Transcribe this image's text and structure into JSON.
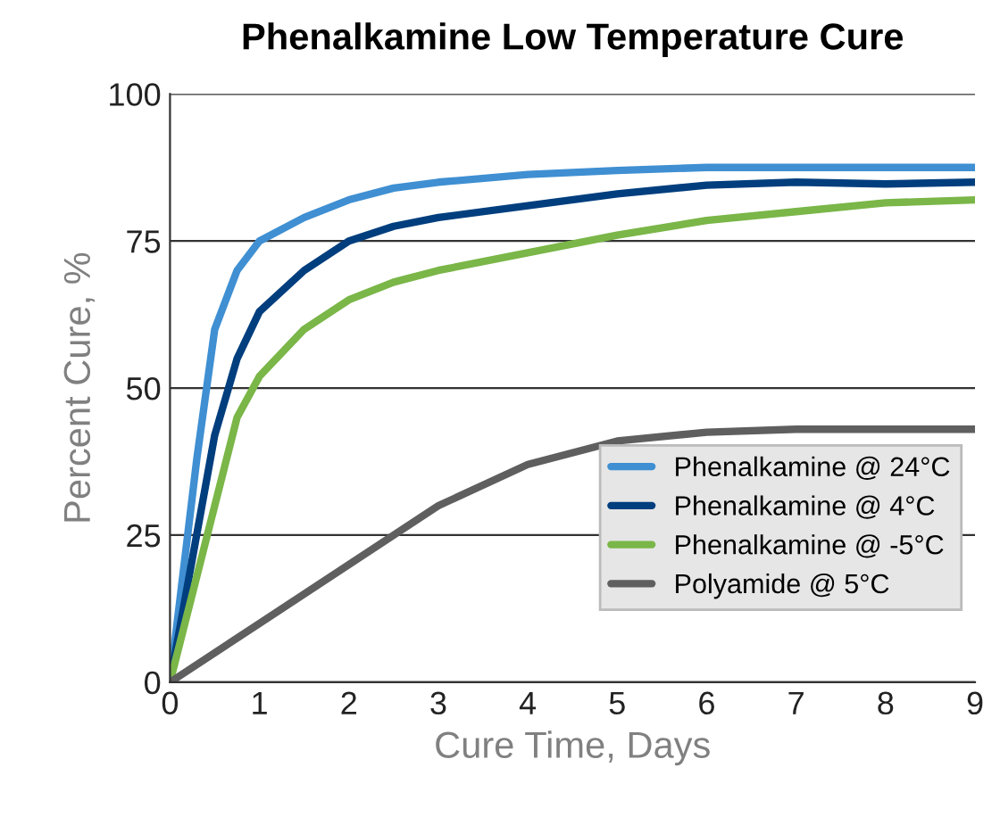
{
  "chart_data": {
    "type": "line",
    "title": "Phenalkamine Low Temperature Cure",
    "xlabel": "Cure Time, Days",
    "ylabel": "Percent Cure, %",
    "xlim": [
      0,
      9
    ],
    "xticks": [
      0,
      1,
      2,
      3,
      4,
      5,
      6,
      7,
      8,
      9
    ],
    "ylim": [
      0,
      100
    ],
    "yticks": [
      0,
      25,
      50,
      75,
      100
    ],
    "grid": "y",
    "legend": "bottom right",
    "marker": "none",
    "line_style": "solid",
    "series": [
      {
        "name": "Phenalkamine @ 24°C",
        "color": "#3f8fd2",
        "x": [
          0,
          0.3,
          0.5,
          0.75,
          1,
          1.5,
          2,
          2.5,
          3,
          4,
          5,
          6,
          7,
          8,
          9
        ],
        "values": [
          0,
          38,
          60,
          70,
          75,
          79,
          82,
          84,
          85,
          86.3,
          87,
          87.5,
          87.5,
          87.5,
          87.5
        ]
      },
      {
        "name": "Phenalkamine @ 4°C",
        "color": "#003e7e",
        "x": [
          0,
          0.5,
          0.75,
          1,
          1.5,
          2,
          2.5,
          3,
          4,
          5,
          6,
          7,
          8,
          9
        ],
        "values": [
          0,
          42,
          55,
          63,
          70,
          75,
          77.5,
          79,
          81,
          83,
          84.5,
          85,
          84.7,
          85
        ]
      },
      {
        "name": "Phenalkamine @ -5°C",
        "color": "#7ab648",
        "x": [
          0,
          0.5,
          0.75,
          1,
          1.5,
          2,
          2.5,
          3,
          4,
          5,
          6,
          7,
          8,
          9
        ],
        "values": [
          0,
          30,
          45,
          52,
          60,
          65,
          68,
          70,
          73,
          76,
          78.5,
          80,
          81.5,
          82
        ]
      },
      {
        "name": "Polyamide @ 5°C",
        "color": "#5f5f5f",
        "x": [
          0,
          1,
          2,
          3,
          4,
          5,
          6,
          7,
          8,
          9
        ],
        "values": [
          0,
          10,
          20,
          30,
          37,
          41,
          42.5,
          43,
          43,
          43
        ]
      }
    ]
  }
}
